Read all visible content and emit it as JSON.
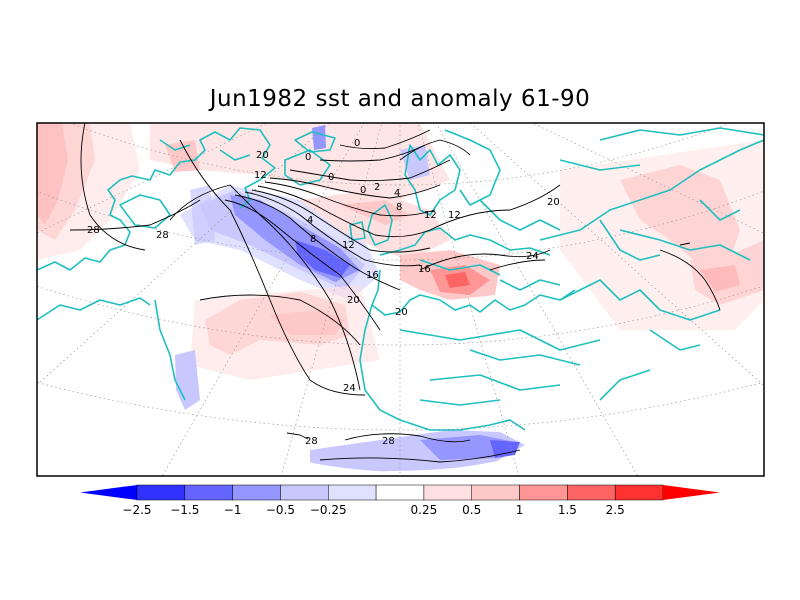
{
  "title": "Jun1982 sst and anomaly 61-90",
  "colors": {
    "coast": "#1fbfbf",
    "grid": "#999999",
    "contour": "#000000",
    "frame": "#000000"
  },
  "contour_labels": [
    "0",
    "0",
    "0",
    "0",
    "2",
    "4",
    "4",
    "8",
    "8",
    "12",
    "12",
    "12",
    "12",
    "16",
    "16",
    "20",
    "20",
    "20",
    "20",
    "24",
    "24",
    "28",
    "28",
    "28",
    "28"
  ],
  "colorbar": {
    "labels": [
      "-2.5",
      "-1.5",
      "-1",
      "-0.5",
      "-0.25",
      "0.25",
      "0.5",
      "1",
      "1.5",
      "2.5"
    ],
    "colors": [
      "#0000ff",
      "#3232ff",
      "#6464ff",
      "#9696ff",
      "#c8c8ff",
      "#e0e0ff",
      "#ffffff",
      "#ffe0e0",
      "#ffc8c8",
      "#ff9696",
      "#ff6464",
      "#ff3232",
      "#ff0000"
    ]
  }
}
